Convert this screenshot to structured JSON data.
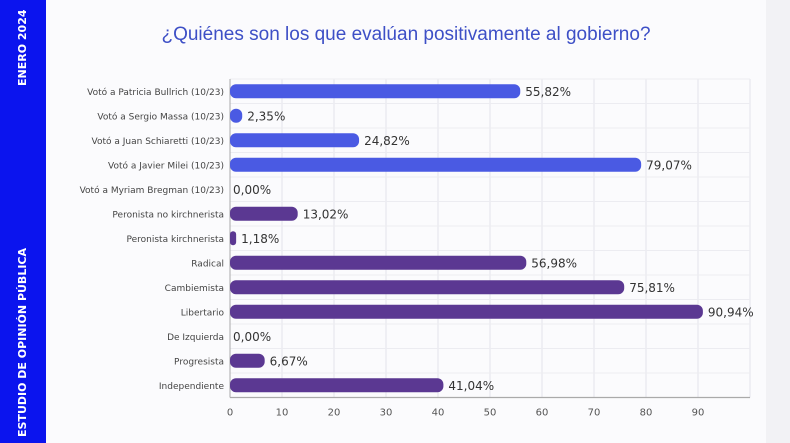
{
  "sidebar": {
    "date": "ENERO 2024",
    "study": "ESTUDIO DE OPINIÓN PÚBLICA"
  },
  "chart_data": {
    "type": "bar",
    "orientation": "horizontal",
    "title": "¿Quiénes son los que evalúan positivamente al gobierno?",
    "categories": [
      "Votó a Patricia Bullrich (10/23)",
      "Votó a Sergio Massa (10/23)",
      "Votó a Juan Schiaretti (10/23)",
      "Votó a Javier Milei (10/23)",
      "Votó a Myriam Bregman (10/23)",
      "Peronista no kirchnerista",
      "Peronista kirchnerista",
      "Radical",
      "Cambiemista",
      "Libertario",
      "De Izquierda",
      "Progresista",
      "Independiente"
    ],
    "values": [
      55.82,
      2.35,
      24.82,
      79.07,
      0.0,
      13.02,
      1.18,
      56.98,
      75.81,
      90.94,
      0.0,
      6.67,
      41.04
    ],
    "value_labels": [
      "55,82%",
      "2,35%",
      "24,82%",
      "79,07%",
      "0,00%",
      "13,02%",
      "1,18%",
      "56,98%",
      "75,81%",
      "90,94%",
      "0,00%",
      "6,67%",
      "41,04%"
    ],
    "groups": [
      "vote",
      "vote",
      "vote",
      "vote",
      "vote",
      "identity",
      "identity",
      "identity",
      "identity",
      "identity",
      "identity",
      "identity",
      "identity"
    ],
    "colors": {
      "vote": "#4a5ae3",
      "identity": "#5b3892"
    },
    "xlim": [
      0,
      100
    ],
    "xticks": [
      0,
      10,
      20,
      30,
      40,
      50,
      60,
      70,
      80,
      90
    ],
    "grid": true,
    "xlabel": "",
    "ylabel": ""
  }
}
